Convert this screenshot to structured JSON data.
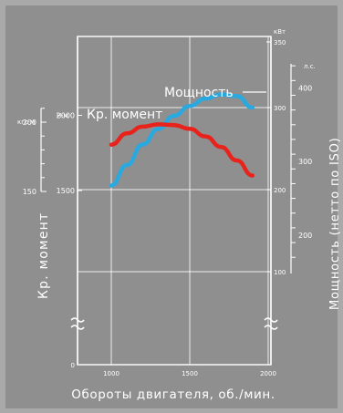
{
  "chart_data": {
    "type": "line",
    "x_axis": {
      "label": "Обороты двигателя, об./мин.",
      "ticks": [
        1000,
        1500,
        2000
      ],
      "range": [
        1000,
        2000
      ]
    },
    "left_axis": {
      "label": "Кр. момент",
      "unit_kgfm": "кгс·м",
      "unit_nm": "Н·м",
      "ticks_kgfm": [
        150,
        200
      ],
      "ticks_nm": [
        1500,
        2000
      ]
    },
    "right_axis": {
      "label": "Мощность (нетто по ISO)",
      "unit_kw": "кВт",
      "unit_hp": "л.с.",
      "ticks_kw": [
        100,
        200,
        300,
        350
      ],
      "ticks_hp": [
        200,
        300,
        400
      ]
    },
    "series": [
      {
        "name": "Мощность",
        "color": "#29a9e0",
        "axis": "right_kw",
        "x": [
          1000,
          1100,
          1200,
          1300,
          1400,
          1500,
          1600,
          1700,
          1800,
          1900
        ],
        "y": [
          205,
          230,
          255,
          274,
          290,
          302,
          311,
          316,
          314,
          300
        ]
      },
      {
        "name": "Кр. момент",
        "color": "#e8231c",
        "axis": "left_nm",
        "x": [
          1000,
          1100,
          1200,
          1300,
          1400,
          1500,
          1600,
          1700,
          1800,
          1900
        ],
        "y": [
          1805,
          1880,
          1925,
          1940,
          1935,
          1910,
          1860,
          1790,
          1700,
          1600
        ]
      }
    ],
    "gridlines": {
      "vertical": [
        1000,
        1500,
        2000
      ],
      "horizontal_kw": [
        300,
        200,
        100
      ]
    }
  }
}
